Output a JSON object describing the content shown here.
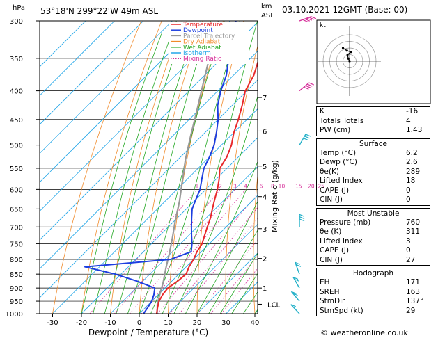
{
  "header": {
    "hpa": "hPa",
    "location": "53°18'N  299°22'W  49m  ASL",
    "km": "km",
    "asl": "ASL",
    "datetime": "03.10.2021  12GMT  (Base: 00)"
  },
  "colors": {
    "temperature": "#e8272a",
    "dewpoint": "#1c3ee0",
    "parcel": "#999999",
    "dry_adiabat": "#f08a2a",
    "wet_adiabat": "#23a823",
    "isotherm": "#22a6e8",
    "mixing_ratio": "#d6309a",
    "wind_barb_upper": "#d6309a",
    "wind_barb_lower": "#22b0c8"
  },
  "legend": [
    {
      "label": "Temperature",
      "color": "#e8272a",
      "style": "solid"
    },
    {
      "label": "Dewpoint",
      "color": "#1c3ee0",
      "style": "solid"
    },
    {
      "label": "Parcel Trajectory",
      "color": "#999999",
      "style": "solid"
    },
    {
      "label": "Dry Adiabat",
      "color": "#f08a2a",
      "style": "solid"
    },
    {
      "label": "Wet Adiabat",
      "color": "#23a823",
      "style": "solid"
    },
    {
      "label": "Isotherm",
      "color": "#22a6e8",
      "style": "solid"
    },
    {
      "label": "Mixing Ratio",
      "color": "#d6309a",
      "style": "dotted"
    }
  ],
  "chart_data": {
    "type": "line",
    "xlabel": "Dewpoint / Temperature (°C)",
    "ylabel_right": "Mixing Ratio (g/kg)",
    "xlim": [
      -35,
      40
    ],
    "ylim": [
      1000,
      300
    ],
    "log_y": true,
    "skew": true,
    "x_ticks": [
      -30,
      -20,
      -10,
      0,
      10,
      20,
      30,
      40
    ],
    "pressure_levels": [
      300,
      350,
      400,
      450,
      500,
      550,
      600,
      650,
      700,
      750,
      800,
      850,
      900,
      950,
      1000
    ],
    "km_ticks": [
      {
        "km": "7",
        "p": 411
      },
      {
        "km": "6",
        "p": 472
      },
      {
        "km": "5",
        "p": 545
      },
      {
        "km": "4",
        "p": 618
      },
      {
        "km": "3",
        "p": 705
      },
      {
        "km": "2",
        "p": 797
      },
      {
        "km": "1",
        "p": 900
      },
      {
        "km": "LCL",
        "p": 962
      }
    ],
    "mixing_ratio_labels": [
      "1",
      "2",
      "3",
      "4",
      "6",
      "8",
      "10",
      "15",
      "20",
      "25"
    ],
    "mixing_ratio_values": [
      1,
      2,
      3,
      4,
      6,
      8,
      10,
      15,
      20,
      25
    ],
    "series": [
      {
        "name": "Temperature",
        "points": [
          [
            6.0,
            1000
          ],
          [
            4.2,
            975
          ],
          [
            2.5,
            950
          ],
          [
            1.5,
            925
          ],
          [
            1.0,
            900
          ],
          [
            2.0,
            875
          ],
          [
            2.5,
            850
          ],
          [
            1.0,
            825
          ],
          [
            0.0,
            800
          ],
          [
            -1.5,
            775
          ],
          [
            -2.5,
            750
          ],
          [
            -4.5,
            725
          ],
          [
            -6.5,
            700
          ],
          [
            -8.5,
            675
          ],
          [
            -11.0,
            650
          ],
          [
            -13.5,
            625
          ],
          [
            -16.0,
            600
          ],
          [
            -19.0,
            575
          ],
          [
            -22.5,
            550
          ],
          [
            -24.0,
            525
          ],
          [
            -26.5,
            500
          ],
          [
            -30.0,
            475
          ],
          [
            -33.0,
            450
          ],
          [
            -36.5,
            425
          ],
          [
            -40.5,
            400
          ],
          [
            -43.0,
            375
          ],
          [
            -47.0,
            350
          ],
          [
            -51.5,
            325
          ],
          [
            -56.0,
            300
          ]
        ]
      },
      {
        "name": "Dewpoint",
        "points": [
          [
            1.5,
            1000
          ],
          [
            0.8,
            975
          ],
          [
            0.0,
            950
          ],
          [
            -1.5,
            925
          ],
          [
            -3.5,
            900
          ],
          [
            -12.0,
            875
          ],
          [
            -22.0,
            850
          ],
          [
            -35.0,
            825
          ],
          [
            -8.0,
            800
          ],
          [
            -3.5,
            775
          ],
          [
            -6.0,
            750
          ],
          [
            -9.0,
            725
          ],
          [
            -12.0,
            700
          ],
          [
            -15.0,
            675
          ],
          [
            -18.0,
            650
          ],
          [
            -20.0,
            625
          ],
          [
            -22.0,
            600
          ],
          [
            -25.0,
            575
          ],
          [
            -28.0,
            550
          ],
          [
            -30.0,
            525
          ],
          [
            -32.5,
            500
          ],
          [
            -36.0,
            475
          ],
          [
            -40.0,
            450
          ],
          [
            -45.0,
            425
          ],
          [
            -49.0,
            400
          ],
          [
            -52.5,
            375
          ],
          [
            -57.5,
            350
          ],
          [
            -62.5,
            325
          ],
          [
            -68.0,
            300
          ]
        ]
      },
      {
        "name": "Parcel Trajectory",
        "points": [
          [
            6.2,
            1000
          ],
          [
            3.0,
            962
          ],
          [
            0.5,
            925
          ],
          [
            -2.5,
            880
          ],
          [
            -6.5,
            830
          ],
          [
            -10.5,
            780
          ],
          [
            -15.0,
            730
          ],
          [
            -20.0,
            680
          ],
          [
            -25.0,
            630
          ],
          [
            -31.0,
            580
          ],
          [
            -37.5,
            530
          ],
          [
            -44.0,
            480
          ],
          [
            -51.0,
            430
          ],
          [
            -59.0,
            380
          ],
          [
            -68.0,
            330
          ],
          [
            -74.0,
            300
          ]
        ]
      }
    ]
  },
  "hodograph": {
    "label": "kt",
    "rings": [
      10,
      20,
      30,
      40
    ],
    "points": [
      [
        0,
        0
      ],
      [
        -2,
        -4
      ],
      [
        -3,
        -10
      ],
      [
        2,
        -14
      ],
      [
        -4,
        -16
      ],
      [
        -10,
        -20
      ]
    ]
  },
  "winds": [
    {
      "p": 300,
      "dir": 250,
      "spd": 50,
      "color": "#d6309a"
    },
    {
      "p": 400,
      "dir": 230,
      "spd": 35,
      "color": "#d6309a"
    },
    {
      "p": 500,
      "dir": 210,
      "spd": 30,
      "color": "#22b0c8"
    },
    {
      "p": 700,
      "dir": 180,
      "spd": 25,
      "color": "#22b0c8"
    },
    {
      "p": 850,
      "dir": 160,
      "spd": 20,
      "color": "#22b0c8"
    },
    {
      "p": 900,
      "dir": 150,
      "spd": 20,
      "color": "#22b0c8"
    },
    {
      "p": 950,
      "dir": 140,
      "spd": 15,
      "color": "#22b0c8"
    },
    {
      "p": 1000,
      "dir": 137,
      "spd": 10,
      "color": "#22b0c8"
    }
  ],
  "indices": {
    "top": [
      {
        "label": "K",
        "value": "-16"
      },
      {
        "label": "Totals Totals",
        "value": "4"
      },
      {
        "label": "PW (cm)",
        "value": "1.43"
      }
    ],
    "surface": {
      "title": "Surface",
      "rows": [
        {
          "label": "Temp (°C)",
          "value": "6.2"
        },
        {
          "label": "Dewp (°C)",
          "value": "2.6"
        },
        {
          "label": "θe(K)",
          "value": "289"
        },
        {
          "label": "Lifted Index",
          "value": "18"
        },
        {
          "label": "CAPE (J)",
          "value": "0"
        },
        {
          "label": "CIN (J)",
          "value": "0"
        }
      ]
    },
    "most_unstable": {
      "title": "Most Unstable",
      "rows": [
        {
          "label": "Pressure (mb)",
          "value": "760"
        },
        {
          "label": "θe (K)",
          "value": "311"
        },
        {
          "label": "Lifted Index",
          "value": "3"
        },
        {
          "label": "CAPE (J)",
          "value": "0"
        },
        {
          "label": "CIN (J)",
          "value": "27"
        }
      ]
    },
    "hodograph": {
      "title": "Hodograph",
      "rows": [
        {
          "label": "EH",
          "value": "171"
        },
        {
          "label": "SREH",
          "value": "163"
        },
        {
          "label": "StmDir",
          "value": "137°"
        },
        {
          "label": "StmSpd (kt)",
          "value": "29"
        }
      ]
    }
  },
  "footer": "© weatheronline.co.uk"
}
